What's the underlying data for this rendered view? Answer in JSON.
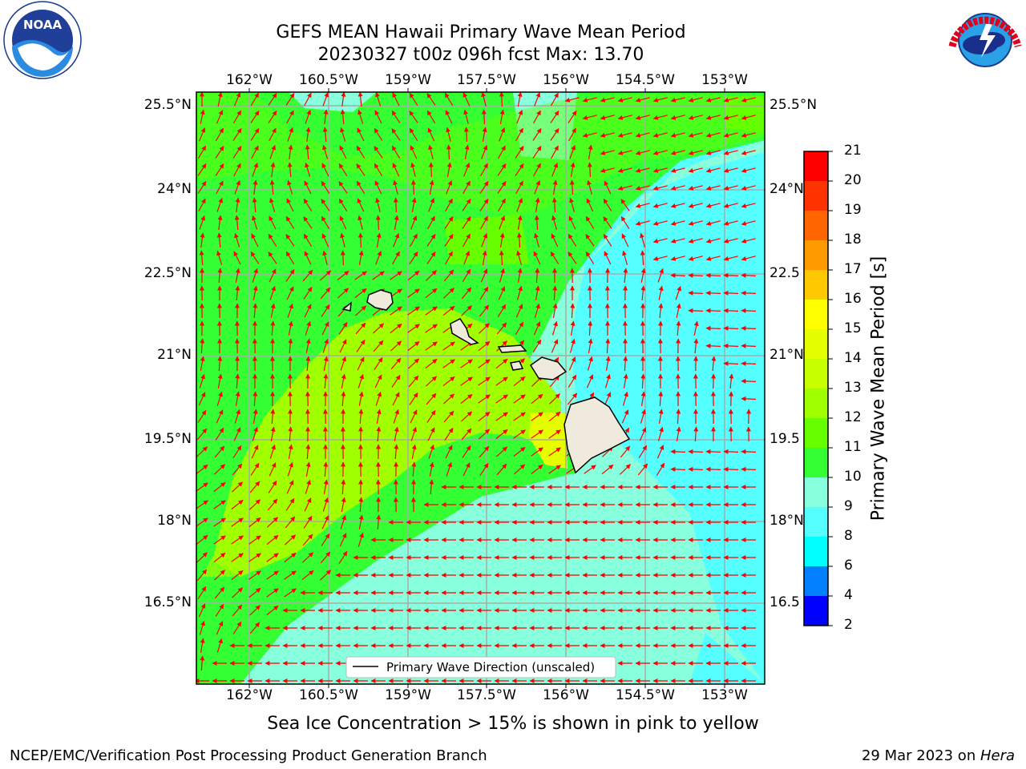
{
  "title": {
    "line1": "GEFS MEAN Hawaii Primary Wave Mean Period",
    "line2": "20230327 t00z 096h fcst   Max: 13.70"
  },
  "map": {
    "lon_labels": [
      "162°W",
      "160.5°W",
      "159°W",
      "157.5°W",
      "156°W",
      "154.5°W",
      "153°W"
    ],
    "lat_labels": [
      "25.5°N",
      "24°N",
      "22.5°N",
      "21°N",
      "19.5°N",
      "18°N",
      "16.5°N"
    ],
    "lat_labels_right_truncated": [
      "25.5°N",
      "24°N",
      "22.5",
      "21°N",
      "19.5",
      "18°N",
      "16.5"
    ],
    "legend_text": "Primary Wave Direction (unscaled)",
    "arrow_color": "#ff0000",
    "land_color": "#efeadb"
  },
  "colorbar": {
    "label": "Primary Wave Mean Period [s]",
    "ticks": [
      "21",
      "20",
      "19",
      "18",
      "17",
      "16",
      "15",
      "14",
      "13",
      "12",
      "11",
      "10",
      "9",
      "8",
      "6",
      "4",
      "2"
    ],
    "colors": [
      "#ff0000",
      "#ff3300",
      "#ff6600",
      "#ff9900",
      "#ffc800",
      "#ffff00",
      "#e6ff00",
      "#c8ff00",
      "#a0ff00",
      "#66ff00",
      "#33ff33",
      "#88ffdd",
      "#55ffff",
      "#00ffff",
      "#0080ff",
      "#0000ff"
    ]
  },
  "chart_data": {
    "type": "heatmap",
    "title": "GEFS MEAN Hawaii Primary Wave Mean Period",
    "colorbar_range": [
      2,
      21
    ],
    "max_value": 13.7,
    "field_levels": [
      {
        "region": "northeast offshore / east",
        "period_s": 9
      },
      {
        "region": "southeast offshore",
        "period_s": 10
      },
      {
        "region": "north and west",
        "period_s": 11
      },
      {
        "region": "central band southwest of islands",
        "period_s": 13
      }
    ]
  },
  "note": "Sea Ice Concentration > 15% is shown in pink to yellow",
  "footer": {
    "left": "NCEP/EMC/Verification Post Processing Product Generation Branch",
    "right_date": "29 Mar 2023 on ",
    "right_machine": "Hera"
  },
  "logos": {
    "left": "NOAA",
    "left_ring": "NATIONAL OCEANIC AND ATMOSPHERIC ADMINISTRATION · U.S. DEPARTMENT OF COMMERCE",
    "right_ring": "NATIONAL WEATHER SERVICE"
  }
}
